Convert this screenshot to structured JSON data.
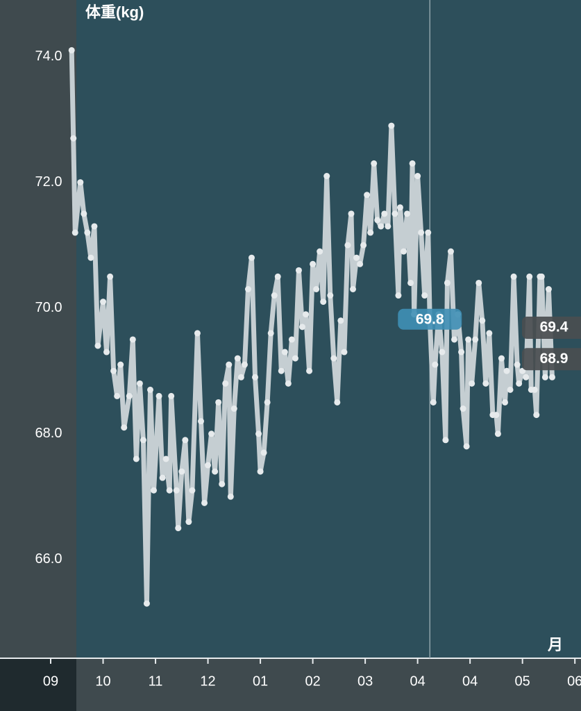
{
  "chart_data": {
    "type": "line",
    "title": "体重(kg)",
    "x_label": "月",
    "xlim": [
      -29,
      303.5
    ],
    "ylim": [
      64.43,
      74.9
    ],
    "xticks": [
      {
        "value": 0,
        "label": "09"
      },
      {
        "value": 30,
        "label": "10"
      },
      {
        "value": 60,
        "label": "11"
      },
      {
        "value": 90,
        "label": "12"
      },
      {
        "value": 120,
        "label": "01"
      },
      {
        "value": 150,
        "label": "02"
      },
      {
        "value": 180,
        "label": "03"
      },
      {
        "value": 210,
        "label": "04"
      },
      {
        "value": 240,
        "label": "04"
      },
      {
        "value": 270,
        "label": "05"
      },
      {
        "value": 300,
        "label": "06"
      }
    ],
    "yticks": [
      {
        "value": 74,
        "label": "74.0"
      },
      {
        "value": 72,
        "label": "72.0"
      },
      {
        "value": 70,
        "label": "70.0"
      },
      {
        "value": 68,
        "label": "68.0"
      },
      {
        "value": 66,
        "label": "66.0"
      }
    ],
    "grid": false,
    "color": "#c5ced2",
    "x": [
      12,
      13,
      14,
      17,
      19,
      21,
      23,
      25,
      27,
      30,
      32,
      34,
      36,
      38,
      40,
      42,
      45,
      47,
      49,
      51,
      53,
      55,
      57,
      59,
      62,
      64,
      66,
      68,
      69,
      72,
      73,
      75,
      77,
      79,
      81,
      84,
      86,
      88,
      90,
      92,
      94,
      96,
      98,
      100,
      102,
      103,
      105,
      107,
      109,
      111,
      113,
      115,
      117,
      119,
      120,
      122,
      124,
      126,
      128,
      130,
      132,
      134,
      136,
      138,
      140,
      142,
      144,
      146,
      148,
      150,
      152,
      154,
      156,
      158,
      160,
      162,
      164,
      166,
      168,
      170,
      172,
      173,
      175,
      177,
      179,
      181,
      183,
      185,
      187,
      189,
      191,
      193,
      195,
      197,
      199,
      200,
      202,
      204,
      206,
      207,
      208,
      210,
      212,
      214,
      216,
      217,
      219,
      220,
      222,
      224,
      226,
      227,
      229,
      231,
      233,
      235,
      236,
      238,
      239,
      241,
      243,
      245,
      247,
      249,
      251,
      253,
      255,
      256,
      258,
      260,
      261,
      263,
      265,
      267,
      268,
      270,
      272,
      274,
      275,
      277,
      278,
      280,
      281,
      283,
      285,
      287
    ],
    "values": [
      74.1,
      72.7,
      71.2,
      72.0,
      71.5,
      71.2,
      70.8,
      71.3,
      69.4,
      70.1,
      69.3,
      70.5,
      69.0,
      68.6,
      69.1,
      68.1,
      68.6,
      69.5,
      67.6,
      68.8,
      67.9,
      65.3,
      68.7,
      67.1,
      68.6,
      67.3,
      67.6,
      67.1,
      68.6,
      67.1,
      66.5,
      67.4,
      67.9,
      66.6,
      67.1,
      69.6,
      68.2,
      66.9,
      67.5,
      68.0,
      67.4,
      68.5,
      67.2,
      68.8,
      69.1,
      67.0,
      68.4,
      69.2,
      68.9,
      69.1,
      70.3,
      70.8,
      68.9,
      68.0,
      67.4,
      67.7,
      68.5,
      69.6,
      70.2,
      70.5,
      69.0,
      69.3,
      68.8,
      69.5,
      69.2,
      70.6,
      69.7,
      69.9,
      69.0,
      70.7,
      70.3,
      70.9,
      70.1,
      72.1,
      70.2,
      69.2,
      68.5,
      69.8,
      69.3,
      71.0,
      71.5,
      70.3,
      70.8,
      70.7,
      71.0,
      71.8,
      71.2,
      72.3,
      71.4,
      71.3,
      71.5,
      71.3,
      72.9,
      71.5,
      70.2,
      71.6,
      70.9,
      71.5,
      70.4,
      72.3,
      69.9,
      72.1,
      71.2,
      70.2,
      71.2,
      69.8,
      68.5,
      69.1,
      69.9,
      69.3,
      67.9,
      70.4,
      70.9,
      69.5,
      69.9,
      69.3,
      68.4,
      67.8,
      69.5,
      68.8,
      69.5,
      70.4,
      69.8,
      68.8,
      69.6,
      68.3,
      68.3,
      68.0,
      69.2,
      68.5,
      69.0,
      68.7,
      70.5,
      69.1,
      68.8,
      69.0,
      68.9,
      70.5,
      68.7,
      68.7,
      68.3,
      70.5,
      70.5,
      68.9,
      70.3,
      68.9
    ],
    "cursor": {
      "x": 217,
      "value": 69.8,
      "label": "69.8"
    },
    "side_labels": [
      {
        "value": 69.4,
        "label": "69.4"
      },
      {
        "value": 68.9,
        "label": "68.9"
      }
    ]
  }
}
